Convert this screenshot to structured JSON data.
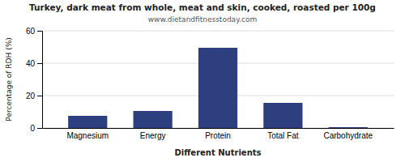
{
  "chart_data": {
    "type": "bar",
    "title": "Turkey, dark meat from whole, meat and skin, cooked, roasted per 100g",
    "subtitle": "www.dietandfitnesstoday.com",
    "xlabel": "Different Nutrients",
    "ylabel": "Percentage of RDH (%)",
    "categories": [
      "Magnesium",
      "Energy",
      "Protein",
      "Total Fat",
      "Carbohydrate"
    ],
    "values": [
      7.5,
      10.5,
      49.5,
      15.5,
      0.5
    ],
    "color": "#2d3f7f",
    "ylim": [
      0,
      60
    ],
    "yticks": [
      0,
      20,
      40,
      60
    ],
    "grid": true
  }
}
